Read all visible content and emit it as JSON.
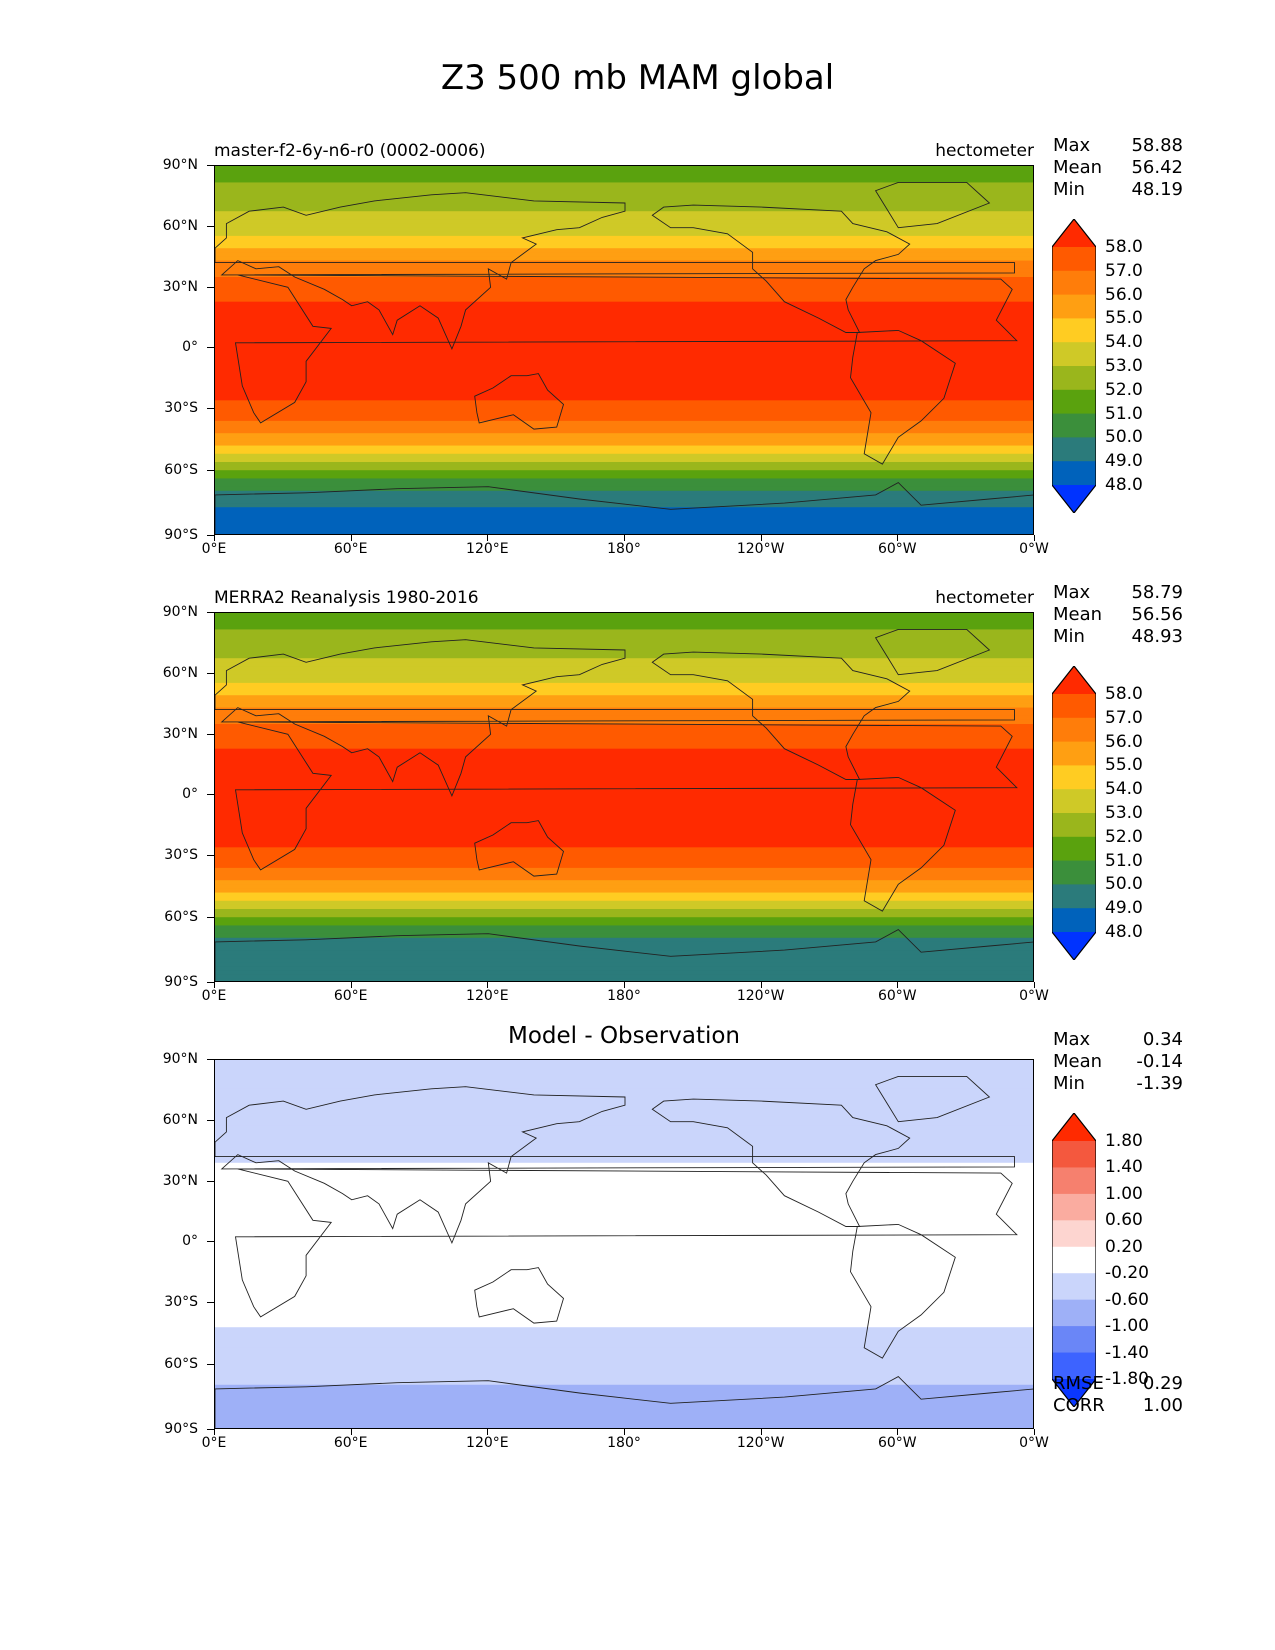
{
  "title": "Z3 500 mb MAM global",
  "axes": {
    "yticks": [
      "90°N",
      "60°N",
      "30°N",
      "0°",
      "30°S",
      "60°S",
      "90°S"
    ],
    "xticks": [
      "0°E",
      "60°E",
      "120°E",
      "180°",
      "120°W",
      "60°W",
      "0°W"
    ]
  },
  "panels": [
    {
      "left_title": "master-f2-6y-n6-r0 (0002-0006)",
      "right_title": "hectometer",
      "center_title": "",
      "stats": [
        {
          "label": "Max",
          "value": "58.88"
        },
        {
          "label": "Mean",
          "value": "56.42"
        },
        {
          "label": "Min",
          "value": "48.19"
        }
      ],
      "colorbar_labels": [
        "58.0",
        "57.0",
        "56.0",
        "55.0",
        "54.0",
        "53.0",
        "52.0",
        "51.0",
        "50.0",
        "49.0",
        "48.0"
      ],
      "colorbar_colors": [
        "#0033ff",
        "#0062bb",
        "#2b7b7b",
        "#3b8f3b",
        "#5aa20e",
        "#9ab61c",
        "#cfc927",
        "#ffcc22",
        "#ff9f12",
        "#ff7d0a",
        "#ff5a00",
        "#ff2a00"
      ]
    },
    {
      "left_title": "MERRA2 Reanalysis 1980-2016",
      "right_title": "hectometer",
      "center_title": "",
      "stats": [
        {
          "label": "Max",
          "value": "58.79"
        },
        {
          "label": "Mean",
          "value": "56.56"
        },
        {
          "label": "Min",
          "value": "48.93"
        }
      ],
      "colorbar_labels": [
        "58.0",
        "57.0",
        "56.0",
        "55.0",
        "54.0",
        "53.0",
        "52.0",
        "51.0",
        "50.0",
        "49.0",
        "48.0"
      ],
      "colorbar_colors": [
        "#0033ff",
        "#0062bb",
        "#2b7b7b",
        "#3b8f3b",
        "#5aa20e",
        "#9ab61c",
        "#cfc927",
        "#ffcc22",
        "#ff9f12",
        "#ff7d0a",
        "#ff5a00",
        "#ff2a00"
      ]
    },
    {
      "left_title": "",
      "right_title": "",
      "center_title": "Model - Observation",
      "stats": [
        {
          "label": "Max",
          "value": "0.34"
        },
        {
          "label": "Mean",
          "value": "-0.14"
        },
        {
          "label": "Min",
          "value": "-1.39"
        }
      ],
      "colorbar_labels": [
        "1.80",
        "1.40",
        "1.00",
        "0.60",
        "0.20",
        "-0.20",
        "-0.60",
        "-1.00",
        "-1.40",
        "-1.80"
      ],
      "colorbar_colors": [
        "#0a37ff",
        "#3d63ff",
        "#6a86f7",
        "#9eb0f7",
        "#cad5fb",
        "#ffffff",
        "#fdd5d0",
        "#faaca0",
        "#f6806e",
        "#f4583e",
        "#ff2a00"
      ],
      "extra_stats": [
        {
          "label": "RMSE",
          "value": "0.29"
        },
        {
          "label": "CORR",
          "value": "1.00"
        }
      ]
    }
  ],
  "chart_data": [
    {
      "type": "heatmap",
      "title": "master-f2-6y-n6-r0 (0002-0006)",
      "units": "hectometer",
      "variable": "Z3 500 mb MAM global",
      "xlim": [
        0,
        360
      ],
      "ylim": [
        -90,
        90
      ],
      "zonal_mean_profile": {
        "lat": [
          90,
          75,
          60,
          50,
          40,
          30,
          20,
          0,
          -20,
          -30,
          -40,
          -50,
          -60,
          -70,
          -80,
          -90
        ],
        "value": [
          51.5,
          52.5,
          53.5,
          55.0,
          56.5,
          57.5,
          58.3,
          58.5,
          58.3,
          57.5,
          56.0,
          54.0,
          51.5,
          49.5,
          48.5,
          48.5
        ]
      },
      "colorbar_levels": [
        48.0,
        49.0,
        50.0,
        51.0,
        52.0,
        53.0,
        54.0,
        55.0,
        56.0,
        57.0,
        58.0
      ],
      "max": 58.88,
      "mean": 56.42,
      "min": 48.19
    },
    {
      "type": "heatmap",
      "title": "MERRA2 Reanalysis 1980-2016",
      "units": "hectometer",
      "variable": "Z3 500 mb MAM global",
      "xlim": [
        0,
        360
      ],
      "ylim": [
        -90,
        90
      ],
      "zonal_mean_profile": {
        "lat": [
          90,
          75,
          60,
          50,
          40,
          30,
          20,
          0,
          -20,
          -30,
          -40,
          -50,
          -60,
          -70,
          -80,
          -90
        ],
        "value": [
          51.5,
          52.5,
          53.5,
          55.0,
          56.5,
          57.5,
          58.3,
          58.5,
          58.3,
          57.5,
          56.0,
          54.0,
          51.5,
          49.8,
          49.5,
          49.5
        ]
      },
      "colorbar_levels": [
        48.0,
        49.0,
        50.0,
        51.0,
        52.0,
        53.0,
        54.0,
        55.0,
        56.0,
        57.0,
        58.0
      ],
      "max": 58.79,
      "mean": 56.56,
      "min": 48.93
    },
    {
      "type": "heatmap",
      "title": "Model - Observation",
      "xlim": [
        0,
        360
      ],
      "ylim": [
        -90,
        90
      ],
      "zonal_mean_profile": {
        "lat": [
          90,
          75,
          60,
          45,
          30,
          0,
          -30,
          -45,
          -60,
          -75,
          -90
        ],
        "value": [
          -0.4,
          -0.4,
          -0.3,
          -0.3,
          0.0,
          0.0,
          0.0,
          -0.3,
          -0.5,
          -0.7,
          -0.7
        ]
      },
      "colorbar_levels": [
        -1.8,
        -1.4,
        -1.0,
        -0.6,
        -0.2,
        0.2,
        0.6,
        1.0,
        1.4,
        1.8
      ],
      "max": 0.34,
      "mean": -0.14,
      "min": -1.39,
      "rmse": 0.29,
      "corr": 1.0
    }
  ]
}
